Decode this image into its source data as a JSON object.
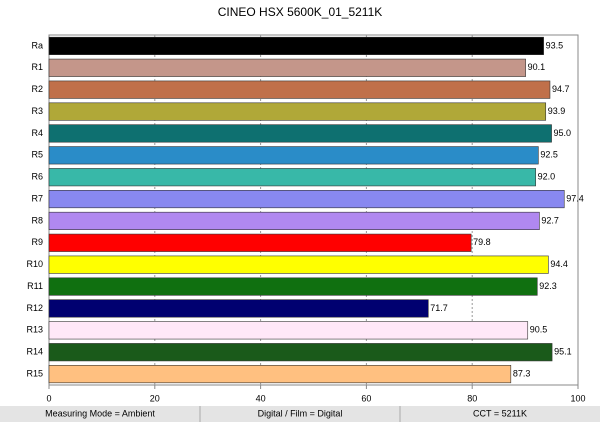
{
  "chart_data": {
    "type": "bar",
    "orientation": "horizontal",
    "title": "CINEO HSX 5600K_01_5211K",
    "categories": [
      "Ra",
      "R1",
      "R2",
      "R3",
      "R4",
      "R5",
      "R6",
      "R7",
      "R8",
      "R9",
      "R10",
      "R11",
      "R12",
      "R13",
      "R14",
      "R15"
    ],
    "values": [
      93.5,
      90.1,
      94.7,
      93.9,
      95.0,
      92.5,
      92.0,
      97.4,
      92.7,
      79.8,
      94.4,
      92.3,
      71.7,
      90.5,
      95.1,
      87.3
    ],
    "value_labels": [
      "93.5",
      "90.1",
      "94.7",
      "93.9",
      "95.0",
      "92.5",
      "92.0",
      "97.4",
      "92.7",
      "79.8",
      "94.4",
      "92.3",
      "71.7",
      "90.5",
      "95.1",
      "87.3"
    ],
    "colors": [
      "#000000",
      "#c4968a",
      "#c0704a",
      "#b0a838",
      "#0e7070",
      "#2a8cc8",
      "#38b8a8",
      "#8888f0",
      "#b088f0",
      "#ff0000",
      "#ffff00",
      "#107010",
      "#000070",
      "#ffe8f8",
      "#1a5a1a",
      "#ffc080"
    ],
    "xlim": [
      0,
      100
    ],
    "xticks": [
      0,
      20,
      40,
      60,
      80,
      100
    ],
    "grid": true
  },
  "footer": [
    "Measuring Mode = Ambient",
    "Digital / Film = Digital",
    "CCT = 5211K"
  ]
}
